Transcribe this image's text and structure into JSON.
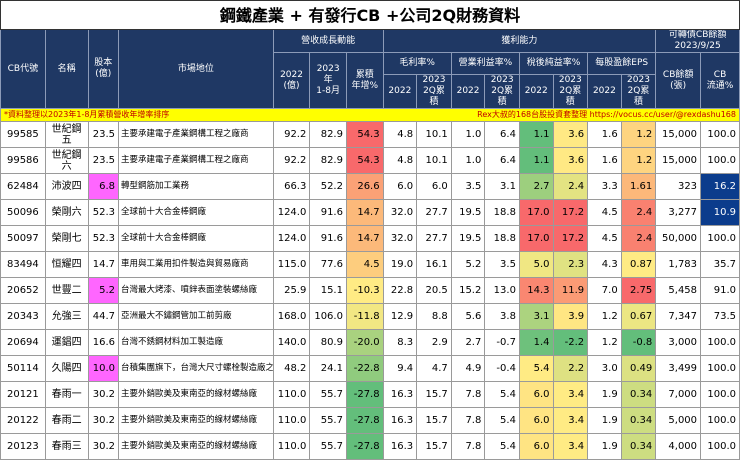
{
  "header": {
    "title": "鋼鐵產業 + 有發行CB +公司2Q財務資料",
    "row1": [
      "CB代號",
      "名稱",
      "股本\n(億)",
      "市場地位",
      "營收成長動能",
      "獲利能力",
      "可轉債CB餘額\n2023/9/25"
    ],
    "row2": [
      "2022\n(億)",
      "2023年\n1-8月",
      "累積\n年增%",
      "毛利率%",
      "營業利益率%",
      "稅後純益率%",
      "每股盈餘EPS",
      "CB餘額\n(張)",
      "CB\n流通%"
    ],
    "row3": [
      "2022",
      "2023\n2Q累積",
      "2022",
      "2023\n2Q累積",
      "2022",
      "2023\n2Q累積",
      "2022",
      "2023\n2Q累積"
    ]
  },
  "note": {
    "left": "*資料整理以2023年1-8月累積營收年增率排序",
    "right": "Rex大叔的168台股投資套整理 https://vocus.cc/user/@rexdashu168"
  },
  "rows": [
    [
      "99585",
      "世紀鋼五",
      "23.5",
      "主要承建電子產業鋼構工程之廠商",
      "92.2",
      "82.9",
      "54.3",
      "4.8",
      "10.1",
      "1.0",
      "6.4",
      "1.1",
      "3.6",
      "1.6",
      "1.2",
      "15,000",
      "100.0"
    ],
    [
      "99586",
      "世紀鋼六",
      "23.5",
      "主要承建電子產業鋼構工程之廠商",
      "92.2",
      "82.9",
      "54.3",
      "4.8",
      "10.1",
      "1.0",
      "6.4",
      "1.1",
      "3.6",
      "1.6",
      "1.2",
      "15,000",
      "100.0"
    ],
    [
      "62484",
      "沛波四",
      "6.8",
      "轉型鋼筋加工業務",
      "66.3",
      "52.2",
      "26.6",
      "6.0",
      "6.0",
      "3.5",
      "3.1",
      "2.7",
      "2.4",
      "3.3",
      "1.61",
      "323",
      "16.2"
    ],
    [
      "50096",
      "榮剛六",
      "52.3",
      "全球前十大合金棒鋼廠",
      "124.0",
      "91.6",
      "14.7",
      "32.0",
      "27.7",
      "19.5",
      "18.8",
      "17.0",
      "17.2",
      "4.5",
      "2.4",
      "3,277",
      "10.9"
    ],
    [
      "50097",
      "榮剛七",
      "52.3",
      "全球前十大合金棒鋼廠",
      "124.0",
      "91.6",
      "14.7",
      "32.0",
      "27.7",
      "19.5",
      "18.8",
      "17.0",
      "17.2",
      "4.5",
      "2.4",
      "50,000",
      "100.0"
    ],
    [
      "83494",
      "恒耀四",
      "14.7",
      "車用與工業用扣件製造與貿易廠商",
      "115.0",
      "77.6",
      "4.5",
      "19.0",
      "16.1",
      "5.2",
      "3.5",
      "5.0",
      "2.3",
      "4.3",
      "0.87",
      "1,783",
      "35.7"
    ],
    [
      "20652",
      "世豐二",
      "5.2",
      "台灣最大烤漆、噴鋅表面塗裝螺絲廠",
      "25.9",
      "15.1",
      "-10.3",
      "22.8",
      "20.5",
      "15.2",
      "13.0",
      "14.3",
      "11.9",
      "7.0",
      "2.75",
      "5,458",
      "91.0"
    ],
    [
      "20343",
      "允強三",
      "44.7",
      "亞洲最大不鏽鋼管加工前剪廠",
      "168.0",
      "106.0",
      "-11.8",
      "12.9",
      "8.8",
      "5.6",
      "3.8",
      "3.1",
      "3.9",
      "1.2",
      "0.67",
      "7,347",
      "73.5"
    ],
    [
      "20694",
      "運錩四",
      "16.6",
      "台灣不銹鋼材料加工製造廠",
      "140.0",
      "80.9",
      "-20.0",
      "8.3",
      "2.9",
      "2.7",
      "-0.7",
      "1.4",
      "-2.2",
      "1.2",
      "-0.8",
      "3,000",
      "100.0"
    ],
    [
      "50114",
      "久陽四",
      "10.0",
      "台積集團旗下，台灣大尺寸螺栓製造廠之一",
      "48.2",
      "24.1",
      "-22.8",
      "9.4",
      "4.7",
      "4.9",
      "-0.4",
      "5.4",
      "2.2",
      "3.0",
      "0.49",
      "3,499",
      "100.0"
    ],
    [
      "20121",
      "春雨一",
      "30.2",
      "主要外銷歐美及東南亞的線材螺絲廠",
      "110.0",
      "55.7",
      "-27.8",
      "16.3",
      "15.7",
      "7.8",
      "5.4",
      "6.0",
      "3.4",
      "1.9",
      "0.34",
      "7,000",
      "100.0"
    ],
    [
      "20122",
      "春雨二",
      "30.2",
      "主要外銷歐美及東南亞的線材螺絲廠",
      "110.0",
      "55.7",
      "-27.8",
      "16.3",
      "15.7",
      "7.8",
      "5.4",
      "6.0",
      "3.4",
      "1.9",
      "0.34",
      "5,000",
      "100.0"
    ],
    [
      "20123",
      "春雨三",
      "30.2",
      "主要外銷歐美及東南亞的線材螺絲廠",
      "110.0",
      "55.7",
      "-27.8",
      "16.3",
      "15.7",
      "7.8",
      "5.4",
      "6.0",
      "3.4",
      "1.9",
      "0.34",
      "4,000",
      "100.0"
    ]
  ]
}
